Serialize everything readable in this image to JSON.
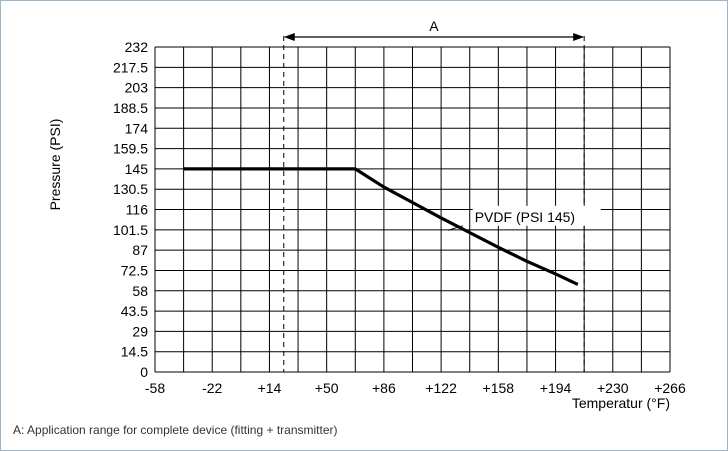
{
  "chart_data": {
    "type": "line",
    "xlabel": "Temperatur (°F)",
    "ylabel": "Pressure (PSI)",
    "x_ticks": [
      "-58",
      "-22",
      "+14",
      "+50",
      "+86",
      "+122",
      "+158",
      "+194",
      "+230",
      "+266"
    ],
    "x_tick_values": [
      -58,
      -22,
      14,
      50,
      86,
      122,
      158,
      194,
      230,
      266
    ],
    "y_ticks": [
      "0",
      "14.5",
      "29",
      "43.5",
      "58",
      "72.5",
      "87",
      "101.5",
      "116",
      "130.5",
      "145",
      "159.5",
      "174",
      "188.5",
      "203",
      "217.5",
      "232"
    ],
    "y_tick_values": [
      0,
      14.5,
      29,
      43.5,
      58,
      72.5,
      87,
      101.5,
      116,
      130.5,
      145,
      159.5,
      174,
      188.5,
      203,
      217.5,
      232
    ],
    "xlim": [
      -58,
      266
    ],
    "ylim": [
      0,
      232
    ],
    "grid": true,
    "series": [
      {
        "name": "PVDF (PSI 145)",
        "x": [
          -40,
          68,
          86,
          104,
          122,
          140,
          158,
          176,
          194,
          208
        ],
        "y": [
          145,
          145,
          132,
          121,
          110,
          99.5,
          89,
          79,
          70,
          62.5
        ]
      }
    ],
    "range_annotation": {
      "label": "A",
      "x_start": 23,
      "x_end": 212
    },
    "caption": "A: Application range for complete device (fitting + transmitter)"
  }
}
